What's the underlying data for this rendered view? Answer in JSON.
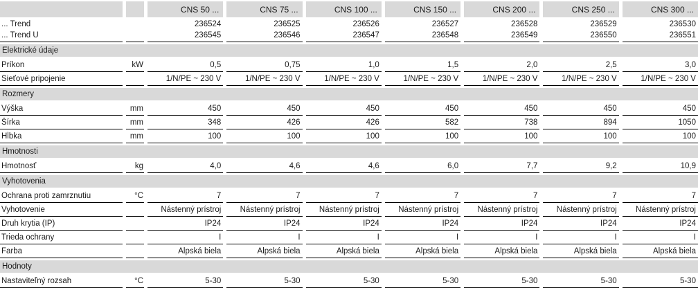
{
  "table": {
    "columns": [
      "CNS 50 ...",
      "CNS 75 ...",
      "CNS 100 ...",
      "CNS 150 ...",
      "CNS 200 ...",
      "CNS 250 ...",
      "CNS 300 ..."
    ],
    "product_rows": [
      {
        "label": "... Trend",
        "unit": "",
        "values": [
          "236524",
          "236525",
          "236526",
          "236527",
          "236528",
          "236529",
          "236530"
        ]
      },
      {
        "label": "... Trend U",
        "unit": "",
        "values": [
          "236545",
          "236546",
          "236547",
          "236548",
          "236549",
          "236550",
          "236551"
        ]
      }
    ],
    "sections": [
      {
        "title": "Elektrické údaje",
        "rows": [
          {
            "label": "Príkon",
            "unit": "kW",
            "values": [
              "0,5",
              "0,75",
              "1,0",
              "1,5",
              "2,0",
              "2,5",
              "3,0"
            ]
          },
          {
            "label": "Sieťové pripojenie",
            "unit": "",
            "values": [
              "1/N/PE ~ 230 V",
              "1/N/PE ~ 230 V",
              "1/N/PE ~ 230 V",
              "1/N/PE ~ 230 V",
              "1/N/PE ~ 230 V",
              "1/N/PE ~ 230 V",
              "1/N/PE ~ 230 V"
            ]
          }
        ]
      },
      {
        "title": "Rozmery",
        "rows": [
          {
            "label": "Výška",
            "unit": "mm",
            "values": [
              "450",
              "450",
              "450",
              "450",
              "450",
              "450",
              "450"
            ]
          },
          {
            "label": "Šírka",
            "unit": "mm",
            "values": [
              "348",
              "426",
              "426",
              "582",
              "738",
              "894",
              "1050"
            ]
          },
          {
            "label": "Hĺbka",
            "unit": "mm",
            "values": [
              "100",
              "100",
              "100",
              "100",
              "100",
              "100",
              "100"
            ]
          }
        ]
      },
      {
        "title": "Hmotnosti",
        "rows": [
          {
            "label": "Hmotnosť",
            "unit": "kg",
            "values": [
              "4,0",
              "4,6",
              "4,6",
              "6,0",
              "7,7",
              "9,2",
              "10,9"
            ]
          }
        ]
      },
      {
        "title": "Vyhotovenia",
        "rows": [
          {
            "label": "Ochrana proti zamrznutiu",
            "unit": "°C",
            "values": [
              "7",
              "7",
              "7",
              "7",
              "7",
              "7",
              "7"
            ]
          },
          {
            "label": "Vyhotovenie",
            "unit": "",
            "values": [
              "Nástenný prístroj",
              "Nástenný prístroj",
              "Nástenný prístroj",
              "Nástenný prístroj",
              "Nástenný prístroj",
              "Nástenný prístroj",
              "Nástenný prístroj"
            ]
          },
          {
            "label": "Druh krytia (IP)",
            "unit": "",
            "values": [
              "IP24",
              "IP24",
              "IP24",
              "IP24",
              "IP24",
              "IP24",
              "IP24"
            ]
          },
          {
            "label": "Trieda ochrany",
            "unit": "",
            "values": [
              "I",
              "I",
              "I",
              "I",
              "I",
              "I",
              "I"
            ]
          },
          {
            "label": "Farba",
            "unit": "",
            "values": [
              "Alpská biela",
              "Alpská biela",
              "Alpská biela",
              "Alpská biela",
              "Alpská biela",
              "Alpská biela",
              "Alpská biela"
            ]
          }
        ]
      },
      {
        "title": "Hodnoty",
        "rows": [
          {
            "label": "Nastaviteľný rozsah",
            "unit": "°C",
            "values": [
              "5-30",
              "5-30",
              "5-30",
              "5-30",
              "5-30",
              "5-30",
              "5-30"
            ]
          }
        ]
      }
    ],
    "colors": {
      "band": "#d9d9d9",
      "text": "#1b1b1b",
      "line": "#000000"
    }
  }
}
